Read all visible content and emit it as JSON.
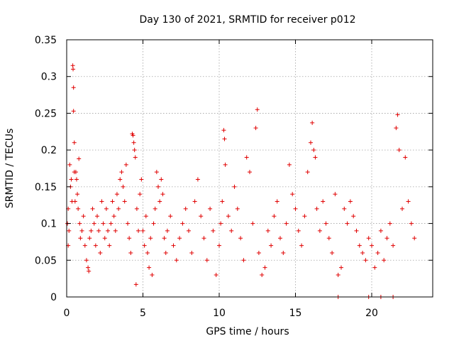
{
  "chart_data": {
    "type": "scatter",
    "title": "Day 130 of 2021, SRMTID for receiver p012",
    "xlabel": "GPS time / hours",
    "ylabel": "SRMTID / TECUs",
    "xlim": [
      0,
      24
    ],
    "ylim": [
      0,
      0.35
    ],
    "xticks": [
      0,
      5,
      10,
      15,
      20
    ],
    "xtick_labels": [
      "0",
      "5",
      "10",
      "15",
      "20"
    ],
    "yticks": [
      0,
      0.05,
      0.1,
      0.15,
      0.2,
      0.25,
      0.3,
      0.35
    ],
    "ytick_labels": [
      "0",
      "0.05",
      "0.1",
      "0.15",
      "0.2",
      "0.25",
      "0.3",
      "0.35"
    ],
    "grid": true,
    "marker": "plus",
    "color": "#e00000",
    "series": [
      {
        "name": "SRMTID",
        "points": [
          [
            0.05,
            0.1
          ],
          [
            0.1,
            0.07
          ],
          [
            0.1,
            0.12
          ],
          [
            0.15,
            0.09
          ],
          [
            0.2,
            0.18
          ],
          [
            0.25,
            0.15
          ],
          [
            0.3,
            0.16
          ],
          [
            0.35,
            0.13
          ],
          [
            0.4,
            0.315
          ],
          [
            0.42,
            0.31
          ],
          [
            0.45,
            0.285
          ],
          [
            0.45,
            0.253
          ],
          [
            0.5,
            0.21
          ],
          [
            0.5,
            0.17
          ],
          [
            0.55,
            0.13
          ],
          [
            0.6,
            0.17
          ],
          [
            0.65,
            0.16
          ],
          [
            0.7,
            0.14
          ],
          [
            0.75,
            0.12
          ],
          [
            0.8,
            0.188
          ],
          [
            0.85,
            0.1
          ],
          [
            0.9,
            0.08
          ],
          [
            1.0,
            0.09
          ],
          [
            1.1,
            0.11
          ],
          [
            1.2,
            0.07
          ],
          [
            1.3,
            0.05
          ],
          [
            1.4,
            0.04
          ],
          [
            1.45,
            0.035
          ],
          [
            1.5,
            0.08
          ],
          [
            1.6,
            0.09
          ],
          [
            1.7,
            0.12
          ],
          [
            1.8,
            0.1
          ],
          [
            1.9,
            0.07
          ],
          [
            2.0,
            0.11
          ],
          [
            2.1,
            0.09
          ],
          [
            2.2,
            0.06
          ],
          [
            2.3,
            0.13
          ],
          [
            2.4,
            0.1
          ],
          [
            2.5,
            0.08
          ],
          [
            2.6,
            0.12
          ],
          [
            2.7,
            0.09
          ],
          [
            2.8,
            0.07
          ],
          [
            2.9,
            0.1
          ],
          [
            3.0,
            0.13
          ],
          [
            3.1,
            0.11
          ],
          [
            3.2,
            0.09
          ],
          [
            3.3,
            0.14
          ],
          [
            3.4,
            0.12
          ],
          [
            3.5,
            0.16
          ],
          [
            3.6,
            0.17
          ],
          [
            3.7,
            0.15
          ],
          [
            3.8,
            0.13
          ],
          [
            3.9,
            0.18
          ],
          [
            4.0,
            0.1
          ],
          [
            4.1,
            0.08
          ],
          [
            4.2,
            0.06
          ],
          [
            4.3,
            0.222
          ],
          [
            4.35,
            0.22
          ],
          [
            4.4,
            0.21
          ],
          [
            4.45,
            0.2
          ],
          [
            4.5,
            0.19
          ],
          [
            4.55,
            0.017
          ],
          [
            4.6,
            0.12
          ],
          [
            4.7,
            0.09
          ],
          [
            4.8,
            0.14
          ],
          [
            4.9,
            0.16
          ],
          [
            5.0,
            0.09
          ],
          [
            5.1,
            0.07
          ],
          [
            5.2,
            0.11
          ],
          [
            5.3,
            0.06
          ],
          [
            5.4,
            0.04
          ],
          [
            5.5,
            0.08
          ],
          [
            5.6,
            0.03
          ],
          [
            5.7,
            0.1
          ],
          [
            5.8,
            0.12
          ],
          [
            5.9,
            0.17
          ],
          [
            6.0,
            0.15
          ],
          [
            6.1,
            0.13
          ],
          [
            6.2,
            0.16
          ],
          [
            6.3,
            0.14
          ],
          [
            6.4,
            0.08
          ],
          [
            6.5,
            0.06
          ],
          [
            6.6,
            0.09
          ],
          [
            6.8,
            0.11
          ],
          [
            7.0,
            0.07
          ],
          [
            7.2,
            0.05
          ],
          [
            7.4,
            0.08
          ],
          [
            7.6,
            0.1
          ],
          [
            7.8,
            0.12
          ],
          [
            8.0,
            0.09
          ],
          [
            8.2,
            0.06
          ],
          [
            8.4,
            0.13
          ],
          [
            8.6,
            0.16
          ],
          [
            8.8,
            0.11
          ],
          [
            9.0,
            0.08
          ],
          [
            9.2,
            0.05
          ],
          [
            9.4,
            0.12
          ],
          [
            9.6,
            0.09
          ],
          [
            9.8,
            0.03
          ],
          [
            10.0,
            0.07
          ],
          [
            10.1,
            0.1
          ],
          [
            10.2,
            0.13
          ],
          [
            10.3,
            0.227
          ],
          [
            10.35,
            0.215
          ],
          [
            10.4,
            0.18
          ],
          [
            10.6,
            0.11
          ],
          [
            10.8,
            0.09
          ],
          [
            11.0,
            0.15
          ],
          [
            11.2,
            0.12
          ],
          [
            11.4,
            0.08
          ],
          [
            11.6,
            0.05
          ],
          [
            11.8,
            0.19
          ],
          [
            12.0,
            0.17
          ],
          [
            12.2,
            0.1
          ],
          [
            12.4,
            0.23
          ],
          [
            12.5,
            0.255
          ],
          [
            12.6,
            0.06
          ],
          [
            12.8,
            0.03
          ],
          [
            13.0,
            0.04
          ],
          [
            13.2,
            0.09
          ],
          [
            13.4,
            0.07
          ],
          [
            13.6,
            0.11
          ],
          [
            13.8,
            0.13
          ],
          [
            14.0,
            0.08
          ],
          [
            14.2,
            0.06
          ],
          [
            14.4,
            0.1
          ],
          [
            14.6,
            0.18
          ],
          [
            14.8,
            0.14
          ],
          [
            15.0,
            0.12
          ],
          [
            15.2,
            0.09
          ],
          [
            15.4,
            0.07
          ],
          [
            15.6,
            0.11
          ],
          [
            15.8,
            0.17
          ],
          [
            16.0,
            0.21
          ],
          [
            16.1,
            0.237
          ],
          [
            16.2,
            0.2
          ],
          [
            16.3,
            0.19
          ],
          [
            16.4,
            0.12
          ],
          [
            16.6,
            0.09
          ],
          [
            16.8,
            0.13
          ],
          [
            17.0,
            0.1
          ],
          [
            17.2,
            0.08
          ],
          [
            17.4,
            0.06
          ],
          [
            17.6,
            0.14
          ],
          [
            17.8,
            0.03
          ],
          [
            18.0,
            0.04
          ],
          [
            18.2,
            0.12
          ],
          [
            18.4,
            0.1
          ],
          [
            18.6,
            0.13
          ],
          [
            18.8,
            0.11
          ],
          [
            19.0,
            0.09
          ],
          [
            19.2,
            0.07
          ],
          [
            19.4,
            0.06
          ],
          [
            19.6,
            0.05
          ],
          [
            19.8,
            0.08
          ],
          [
            20.0,
            0.07
          ],
          [
            20.2,
            0.04
          ],
          [
            20.4,
            0.06
          ],
          [
            20.6,
            0.09
          ],
          [
            20.8,
            0.05
          ],
          [
            21.0,
            0.08
          ],
          [
            21.2,
            0.1
          ],
          [
            21.4,
            0.07
          ],
          [
            21.6,
            0.23
          ],
          [
            21.7,
            0.248
          ],
          [
            21.8,
            0.2
          ],
          [
            22.0,
            0.12
          ],
          [
            22.2,
            0.19
          ],
          [
            22.4,
            0.13
          ],
          [
            22.6,
            0.1
          ],
          [
            22.8,
            0.08
          ],
          [
            17.8,
            0.0
          ],
          [
            19.8,
            0.0
          ],
          [
            20.6,
            0.0
          ],
          [
            21.4,
            0.0
          ]
        ]
      }
    ]
  }
}
